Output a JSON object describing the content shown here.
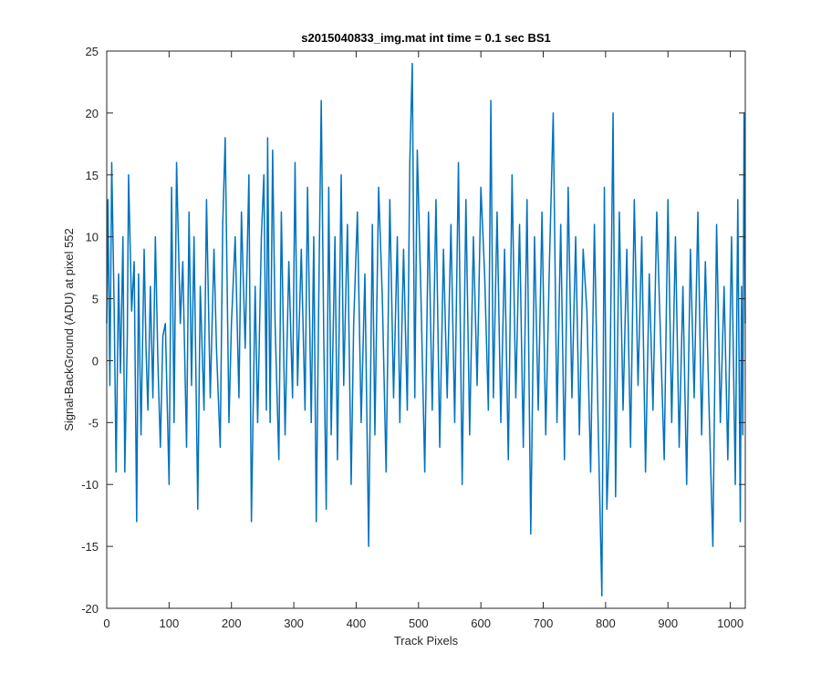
{
  "chart_data": {
    "type": "line",
    "title": "s2015040833_img.mat int time = 0.1 sec   BS1",
    "xlabel": "Track Pixels",
    "ylabel": "Signal-BackGround (ADU) at pixel 552",
    "xlim": [
      0,
      1024
    ],
    "ylim": [
      -20,
      25
    ],
    "xticks": [
      0,
      100,
      200,
      300,
      400,
      500,
      600,
      700,
      800,
      900,
      1000
    ],
    "yticks": [
      -20,
      -15,
      -10,
      -5,
      0,
      5,
      10,
      15,
      20,
      25
    ],
    "grid": false,
    "series_color": "#0072BD",
    "series": [
      {
        "x": [
          0,
          2,
          5,
          8,
          12,
          15,
          19,
          22,
          26,
          29,
          33,
          35,
          40,
          44,
          48,
          51,
          55,
          60,
          63,
          66,
          70,
          74,
          78,
          82,
          86,
          90,
          94,
          100,
          104,
          108,
          112,
          118,
          122,
          128,
          132,
          136,
          140,
          146,
          150,
          156,
          160,
          166,
          172,
          176,
          182,
          186,
          190,
          196,
          200,
          206,
          212,
          216,
          222,
          228,
          232,
          238,
          242,
          248,
          252,
          256,
          258,
          262,
          266,
          270,
          276,
          280,
          286,
          292,
          298,
          302,
          306,
          312,
          318,
          322,
          328,
          332,
          336,
          340,
          344,
          348,
          352,
          356,
          360,
          366,
          370,
          376,
          380,
          386,
          392,
          396,
          402,
          408,
          414,
          420,
          426,
          430,
          436,
          442,
          448,
          454,
          460,
          466,
          470,
          476,
          482,
          486,
          490,
          494,
          498,
          504,
          510,
          516,
          522,
          528,
          534,
          540,
          546,
          552,
          558,
          564,
          570,
          576,
          582,
          588,
          594,
          600,
          606,
          612,
          616,
          620,
          626,
          632,
          638,
          644,
          650,
          656,
          662,
          668,
          674,
          680,
          686,
          692,
          698,
          704,
          710,
          716,
          722,
          728,
          734,
          740,
          746,
          752,
          758,
          764,
          770,
          776,
          782,
          788,
          794,
          798,
          802,
          806,
          812,
          816,
          822,
          828,
          834,
          840,
          846,
          852,
          858,
          864,
          870,
          876,
          882,
          888,
          894,
          900,
          906,
          912,
          918,
          924,
          930,
          936,
          942,
          948,
          954,
          960,
          966,
          972,
          978,
          984,
          990,
          996,
          1002,
          1008,
          1012,
          1016,
          1018,
          1020,
          1022,
          1024
        ],
        "y": [
          3,
          13,
          -2,
          16,
          4,
          -9,
          7,
          -1,
          10,
          -9,
          2,
          15,
          4,
          8,
          -13,
          7,
          -6,
          9,
          1,
          -4,
          6,
          -3,
          10,
          0,
          -7,
          2,
          3,
          -10,
          14,
          -5,
          16,
          3,
          8,
          -7,
          12,
          -2,
          10,
          -12,
          6,
          -4,
          13,
          -3,
          9,
          1,
          -7,
          11,
          18,
          -5,
          3,
          10,
          -3,
          12,
          1,
          15,
          -13,
          6,
          -5,
          10,
          15,
          -4,
          18,
          -5,
          17,
          3,
          -8,
          12,
          -6,
          8,
          -3,
          16,
          -2,
          9,
          -4,
          14,
          -5,
          10,
          -13,
          5,
          21,
          2,
          -12,
          14,
          -6,
          10,
          -8,
          15,
          -2,
          11,
          -10,
          3,
          12,
          -5,
          7,
          -15,
          11,
          -6,
          14,
          5,
          -9,
          13,
          -3,
          10,
          -5,
          9,
          -4,
          16,
          24,
          -3,
          17,
          5,
          -9,
          12,
          -4,
          13,
          -7,
          9,
          -3,
          11,
          -5,
          16,
          -10,
          13,
          -6,
          10,
          -2,
          14,
          7,
          -4,
          21,
          -3,
          12,
          -5,
          9,
          -8,
          15,
          -3,
          11,
          -7,
          13,
          -14,
          10,
          -4,
          12,
          -6,
          8,
          20,
          -5,
          11,
          -8,
          14,
          -3,
          10,
          -6,
          9,
          4,
          -9,
          11,
          -5,
          -19,
          14,
          -12,
          -6,
          20,
          -11,
          12,
          -4,
          9,
          -7,
          13,
          -2,
          10,
          -9,
          7,
          -4,
          12,
          2,
          -8,
          13,
          -5,
          10,
          -7,
          6,
          -10,
          9,
          -3,
          12,
          -6,
          8,
          -4,
          -15,
          11,
          -5,
          6,
          -8,
          10,
          -10,
          13,
          -13,
          6,
          -6,
          20,
          3
        ]
      }
    ]
  }
}
